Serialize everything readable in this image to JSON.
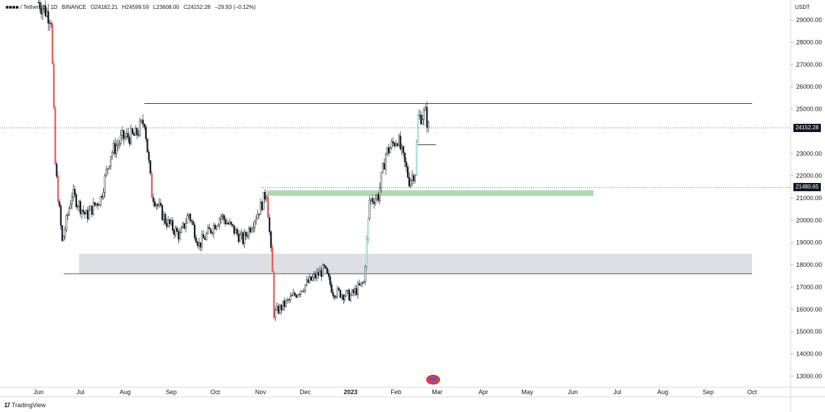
{
  "legend": {
    "symbol_masked": "■■■■ / TetherUS",
    "interval": "1D",
    "exchange": "BINANCE",
    "open": "O24182.21",
    "high": "H24599.59",
    "low": "L23608.00",
    "close": "C24152.28",
    "change": "−29.93 (−0.12%)"
  },
  "price_axis": {
    "currency": "USDT",
    "ticks": [
      "29000.00",
      "28000.00",
      "27000.00",
      "26000.00",
      "25000.00",
      "23000.00",
      "22000.00",
      "21000.00",
      "20000.00",
      "19000.00",
      "18000.00",
      "17000.00",
      "16000.00",
      "15000.00",
      "14000.00",
      "13000.00"
    ],
    "last_price": "24152.28",
    "level_price": "21480.65"
  },
  "time_axis": {
    "labels": [
      "Jun",
      "Jul",
      "Aug",
      "Sep",
      "Oct",
      "Nov",
      "Dec",
      "2023",
      "Feb",
      "Mar",
      "Apr",
      "May",
      "Jun",
      "Jul",
      "Aug",
      "Sep",
      "Oct"
    ]
  },
  "branding": {
    "logo": "17",
    "name": "TradingView"
  },
  "colors": {
    "up": "#26a69a",
    "down": "#ef5350",
    "candle": "#131722",
    "zone_gray": "#d1d4dc",
    "zone_green": "#a5d6a7",
    "level_line": "#131722"
  },
  "chart_data": {
    "type": "candlestick",
    "ylim": [
      12500,
      29900
    ],
    "y_ticks": [
      29000,
      28000,
      27000,
      26000,
      25000,
      23000,
      22000,
      21000,
      20000,
      19000,
      18000,
      17000,
      16000,
      15000,
      14000,
      13000
    ],
    "x_labels": [
      "Jun",
      "Jul",
      "Aug",
      "Sep",
      "Oct",
      "Nov",
      "Dec",
      "2023",
      "Feb",
      "Mar",
      "Apr",
      "May",
      "Jun",
      "Jul",
      "Aug",
      "Sep",
      "Oct"
    ],
    "last_close": 24152.28,
    "levels": [
      {
        "price": 25250,
        "from": "2022-08-14",
        "to": "2023-10-01"
      },
      {
        "price": 17600,
        "from": "2022-06-19",
        "to": "2023-10-01"
      },
      {
        "price": 23400,
        "from": "2023-02-15",
        "to": "2023-02-28"
      }
    ],
    "zones": [
      {
        "low": 17600,
        "high": 18500,
        "from": "2022-06-30",
        "to": "2023-10-01",
        "color": "gray"
      },
      {
        "low": 21100,
        "high": 21350,
        "from": "2022-11-05",
        "to": "2023-06-15",
        "color": "green"
      }
    ],
    "series": [
      {
        "date": "2022-06-01",
        "close": 29800
      },
      {
        "date": "2022-06-10",
        "close": 29100
      },
      {
        "date": "2022-06-13",
        "close": 22500
      },
      {
        "date": "2022-06-18",
        "close": 19000
      },
      {
        "date": "2022-06-25",
        "close": 21200
      },
      {
        "date": "2022-07-05",
        "close": 20200
      },
      {
        "date": "2022-07-15",
        "close": 21000
      },
      {
        "date": "2022-07-22",
        "close": 23000
      },
      {
        "date": "2022-07-30",
        "close": 23700
      },
      {
        "date": "2022-08-08",
        "close": 23800
      },
      {
        "date": "2022-08-14",
        "close": 24500
      },
      {
        "date": "2022-08-19",
        "close": 21200
      },
      {
        "date": "2022-08-28",
        "close": 20000
      },
      {
        "date": "2022-09-07",
        "close": 19300
      },
      {
        "date": "2022-09-13",
        "close": 20300
      },
      {
        "date": "2022-09-20",
        "close": 18900
      },
      {
        "date": "2022-10-05",
        "close": 20200
      },
      {
        "date": "2022-10-20",
        "close": 19100
      },
      {
        "date": "2022-11-01",
        "close": 20600
      },
      {
        "date": "2022-11-05",
        "close": 21300
      },
      {
        "date": "2022-11-09",
        "close": 17600
      },
      {
        "date": "2022-11-10",
        "close": 15800
      },
      {
        "date": "2022-11-20",
        "close": 16400
      },
      {
        "date": "2022-12-01",
        "close": 17100
      },
      {
        "date": "2022-12-14",
        "close": 17800
      },
      {
        "date": "2022-12-20",
        "close": 16800
      },
      {
        "date": "2023-01-01",
        "close": 16600
      },
      {
        "date": "2023-01-10",
        "close": 17200
      },
      {
        "date": "2023-01-14",
        "close": 20900
      },
      {
        "date": "2023-01-20",
        "close": 21100
      },
      {
        "date": "2023-01-25",
        "close": 23000
      },
      {
        "date": "2023-02-02",
        "close": 23700
      },
      {
        "date": "2023-02-10",
        "close": 21800
      },
      {
        "date": "2023-02-14",
        "close": 22200
      },
      {
        "date": "2023-02-16",
        "close": 24600
      },
      {
        "date": "2023-02-21",
        "close": 24800
      },
      {
        "date": "2023-02-23",
        "close": 24152
      }
    ]
  }
}
